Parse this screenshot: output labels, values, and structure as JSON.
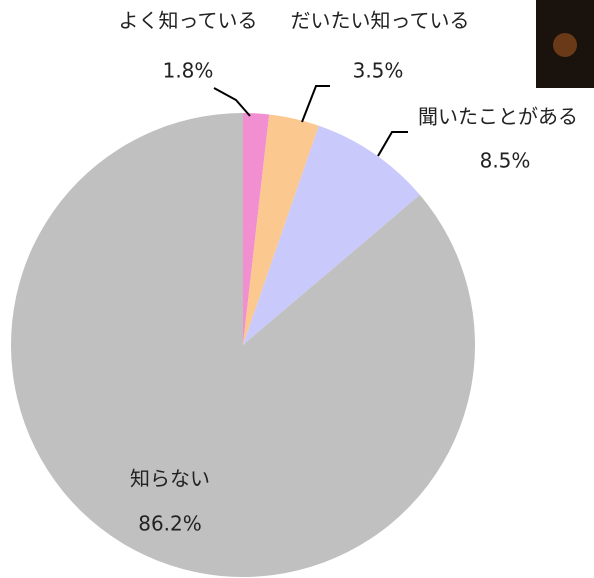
{
  "chart_data": {
    "type": "pie",
    "categories": [
      "よく知っている",
      "だいたい知っている",
      "聞いたことがある",
      "知らない"
    ],
    "values": [
      1.8,
      3.5,
      8.5,
      86.2
    ],
    "value_labels": [
      "1.8%",
      "3.5%",
      "8.5%",
      "86.2%"
    ],
    "colors": [
      "#f28fd0",
      "#fbc88f",
      "#c9c9fb",
      "#c0c0c0"
    ]
  }
}
